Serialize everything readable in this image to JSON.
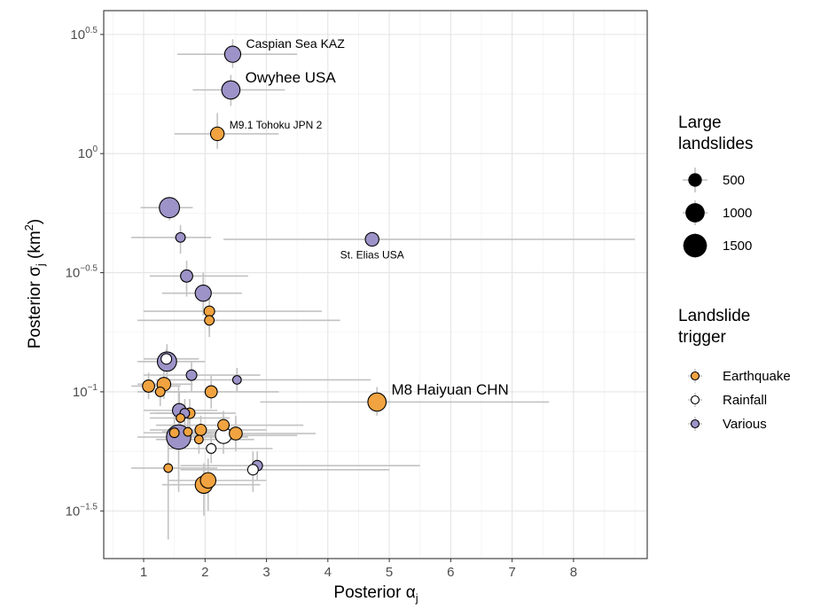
{
  "chart_data": {
    "type": "scatter",
    "xlabel": {
      "main": "Posterior α",
      "sub": "j"
    },
    "ylabel": {
      "main": "Posterior σ",
      "sub": "j",
      "unit_open": " (km",
      "unit_sup": "2",
      "unit_close": ")"
    },
    "x_scale": "linear",
    "y_scale": "log10",
    "xlim": [
      0.35,
      9.2
    ],
    "ylim_log10": [
      -1.7,
      0.6
    ],
    "x_ticks": [
      {
        "value": 1,
        "label": "1"
      },
      {
        "value": 2,
        "label": "2"
      },
      {
        "value": 3,
        "label": "3"
      },
      {
        "value": 4,
        "label": "4"
      },
      {
        "value": 5,
        "label": "5"
      },
      {
        "value": 6,
        "label": "6"
      },
      {
        "value": 7,
        "label": "7"
      },
      {
        "value": 8,
        "label": "8"
      }
    ],
    "y_ticks": [
      {
        "log10": 0.5,
        "base": "10",
        "exp": "0.5"
      },
      {
        "log10": 0,
        "base": "10",
        "exp": "0"
      },
      {
        "log10": -0.5,
        "base": "10",
        "exp": "−0.5"
      },
      {
        "log10": -1,
        "base": "10",
        "exp": "−1"
      },
      {
        "log10": -1.5,
        "base": "10",
        "exp": "−1.5"
      }
    ],
    "grid": true,
    "colors": {
      "Earthquake": "#f0a340",
      "Rainfall": "#ffffff",
      "Various": "#9d93c8",
      "errorbar": "#c2c2c2",
      "grid_major": "#e4e4e4",
      "grid_minor": "#f2f2f2",
      "panel_border": "#333333"
    },
    "legend": {
      "placement": "right",
      "size": {
        "title_lines": [
          "Large",
          "landslides"
        ],
        "entries": [
          {
            "label": "500",
            "value": 500
          },
          {
            "label": "1000",
            "value": 1000
          },
          {
            "label": "1500",
            "value": 1500
          }
        ]
      },
      "trigger": {
        "title_lines": [
          "Landslide",
          "trigger"
        ],
        "entries": [
          {
            "label": "Earthquake",
            "key": "Earthquake"
          },
          {
            "label": "Rainfall",
            "key": "Rainfall"
          },
          {
            "label": "Various",
            "key": "Various"
          }
        ]
      }
    },
    "points": [
      {
        "x": 2.45,
        "log10y": 0.417,
        "xmin": 1.55,
        "xmax": 3.5,
        "log10ymin": 0.48,
        "log10ymax": 0.36,
        "trigger": "Various",
        "size": 700,
        "label": "Caspian Sea KAZ",
        "label_size": 14
      },
      {
        "x": 2.42,
        "log10y": 0.267,
        "xmin": 1.8,
        "xmax": 3.3,
        "log10ymin": 0.33,
        "log10ymax": 0.2,
        "trigger": "Various",
        "size": 900,
        "label": "Owyhee USA",
        "label_size": 17
      },
      {
        "x": 2.2,
        "log10y": 0.083,
        "xmin": 1.5,
        "xmax": 3.2,
        "log10ymin": 0.17,
        "log10ymax": 0.02,
        "trigger": "Earthquake",
        "size": 500,
        "label": "M9.1 Tohoku JPN 2",
        "label_size": 12
      },
      {
        "x": 1.42,
        "log10y": -0.227,
        "xmin": 0.95,
        "xmax": 1.8,
        "log10ymin": -0.19,
        "log10ymax": -0.28,
        "trigger": "Various",
        "size": 1100
      },
      {
        "x": 1.6,
        "log10y": -0.352,
        "xmin": 0.8,
        "xmax": 2.1,
        "log10ymin": -0.3,
        "log10ymax": -0.42,
        "trigger": "Various",
        "size": 250
      },
      {
        "x": 4.72,
        "log10y": -0.36,
        "xmin": 2.3,
        "xmax": 9.0,
        "log10ymin": -0.33,
        "log10ymax": -0.39,
        "trigger": "Various",
        "size": 500,
        "label": "St. Elias USA",
        "label_size": 12
      },
      {
        "x": 1.7,
        "log10y": -0.514,
        "xmin": 1.1,
        "xmax": 2.7,
        "log10ymin": -0.45,
        "log10ymax": -0.6,
        "trigger": "Various",
        "size": 400
      },
      {
        "x": 1.97,
        "log10y": -0.586,
        "xmin": 1.3,
        "xmax": 2.6,
        "log10ymin": -0.5,
        "log10ymax": -0.68,
        "trigger": "Various",
        "size": 700
      },
      {
        "x": 2.07,
        "log10y": -0.662,
        "xmin": 1.0,
        "xmax": 3.9,
        "log10ymin": -0.6,
        "log10ymax": -0.75,
        "trigger": "Earthquake",
        "size": 300
      },
      {
        "x": 2.07,
        "log10y": -0.7,
        "xmin": 0.9,
        "xmax": 4.2,
        "log10ymin": -0.64,
        "log10ymax": -0.77,
        "trigger": "Earthquake",
        "size": 250
      },
      {
        "x": 1.38,
        "log10y": -0.873,
        "xmin": 0.9,
        "xmax": 2.0,
        "log10ymin": -0.8,
        "log10ymax": -0.94,
        "trigger": "Various",
        "size": 1000
      },
      {
        "x": 1.37,
        "log10y": -0.862,
        "xmin": 1.0,
        "xmax": 1.9,
        "log10ymin": -0.82,
        "log10ymax": -0.9,
        "trigger": "Rainfall",
        "size": 300
      },
      {
        "x": 1.78,
        "log10y": -0.93,
        "xmin": 1.0,
        "xmax": 2.9,
        "log10ymin": -0.87,
        "log10ymax": -1.0,
        "trigger": "Various",
        "size": 300
      },
      {
        "x": 2.52,
        "log10y": -0.95,
        "xmin": 1.2,
        "xmax": 4.7,
        "log10ymin": -0.9,
        "log10ymax": -1.0,
        "trigger": "Various",
        "size": 200
      },
      {
        "x": 1.08,
        "log10y": -0.976,
        "xmin": 0.8,
        "xmax": 1.6,
        "log10ymin": -0.92,
        "log10ymax": -1.03,
        "trigger": "Earthquake",
        "size": 400
      },
      {
        "x": 1.33,
        "log10y": -0.968,
        "xmin": 0.9,
        "xmax": 1.8,
        "log10ymin": -0.91,
        "log10ymax": -1.03,
        "trigger": "Earthquake",
        "size": 500
      },
      {
        "x": 1.27,
        "log10y": -1.0,
        "xmin": 0.9,
        "xmax": 1.7,
        "log10ymin": -0.94,
        "log10ymax": -1.06,
        "trigger": "Earthquake",
        "size": 250
      },
      {
        "x": 2.1,
        "log10y": -1.0,
        "xmin": 1.2,
        "xmax": 3.2,
        "log10ymin": -0.93,
        "log10ymax": -1.07,
        "trigger": "Earthquake",
        "size": 400
      },
      {
        "x": 4.8,
        "log10y": -1.043,
        "xmin": 2.9,
        "xmax": 7.6,
        "log10ymin": -0.98,
        "log10ymax": -1.1,
        "trigger": "Earthquake",
        "size": 900,
        "label": "M8 Haiyuan CHN",
        "label_size": 17
      },
      {
        "x": 1.58,
        "log10y": -1.078,
        "xmin": 1.0,
        "xmax": 2.2,
        "log10ymin": -1.0,
        "log10ymax": -1.15,
        "trigger": "Various",
        "size": 500
      },
      {
        "x": 1.67,
        "log10y": -1.09,
        "xmin": 1.1,
        "xmax": 2.3,
        "log10ymin": -1.03,
        "log10ymax": -1.15,
        "trigger": "Various",
        "size": 250
      },
      {
        "x": 1.75,
        "log10y": -1.09,
        "xmin": 1.2,
        "xmax": 2.5,
        "log10ymin": -1.03,
        "log10ymax": -1.15,
        "trigger": "Earthquake",
        "size": 300
      },
      {
        "x": 1.6,
        "log10y": -1.11,
        "xmin": 1.1,
        "xmax": 2.4,
        "log10ymin": -1.05,
        "log10ymax": -1.17,
        "trigger": "Earthquake",
        "size": 200
      },
      {
        "x": 2.3,
        "log10y": -1.14,
        "xmin": 1.2,
        "xmax": 3.6,
        "log10ymin": -1.08,
        "log10ymax": -1.2,
        "trigger": "Earthquake",
        "size": 350
      },
      {
        "x": 1.93,
        "log10y": -1.16,
        "xmin": 1.1,
        "xmax": 3.0,
        "log10ymin": -1.1,
        "log10ymax": -1.22,
        "trigger": "Earthquake",
        "size": 350
      },
      {
        "x": 1.72,
        "log10y": -1.168,
        "xmin": 1.3,
        "xmax": 2.3,
        "log10ymin": -1.11,
        "log10ymax": -1.23,
        "trigger": "Earthquake",
        "size": 200
      },
      {
        "x": 1.5,
        "log10y": -1.172,
        "xmin": 1.0,
        "xmax": 2.1,
        "log10ymin": -1.1,
        "log10ymax": -1.24,
        "trigger": "Earthquake",
        "size": 250
      },
      {
        "x": 2.5,
        "log10y": -1.175,
        "xmin": 1.4,
        "xmax": 3.8,
        "log10ymin": -1.1,
        "log10ymax": -1.25,
        "trigger": "Earthquake",
        "size": 450
      },
      {
        "x": 2.3,
        "log10y": -1.183,
        "xmin": 1.4,
        "xmax": 3.5,
        "log10ymin": -1.11,
        "log10ymax": -1.26,
        "trigger": "Rainfall",
        "size": 700
      },
      {
        "x": 1.9,
        "log10y": -1.2,
        "xmin": 1.2,
        "xmax": 2.8,
        "log10ymin": -1.14,
        "log10ymax": -1.26,
        "trigger": "Earthquake",
        "size": 200
      },
      {
        "x": 1.57,
        "log10y": -1.19,
        "xmin": 0.9,
        "xmax": 2.7,
        "log10ymin": -0.98,
        "log10ymax": -1.42,
        "trigger": "Various",
        "size": 1600
      },
      {
        "x": 2.1,
        "log10y": -1.238,
        "xmin": 1.4,
        "xmax": 3.1,
        "log10ymin": -1.18,
        "log10ymax": -1.3,
        "trigger": "Rainfall",
        "size": 250
      },
      {
        "x": 2.85,
        "log10y": -1.31,
        "xmin": 1.6,
        "xmax": 5.5,
        "log10ymin": -1.25,
        "log10ymax": -1.37,
        "trigger": "Various",
        "size": 300
      },
      {
        "x": 2.78,
        "log10y": -1.327,
        "xmin": 1.6,
        "xmax": 5.0,
        "log10ymin": -1.25,
        "log10ymax": -1.42,
        "trigger": "Rainfall",
        "size": 300
      },
      {
        "x": 1.4,
        "log10y": -1.32,
        "xmin": 0.8,
        "xmax": 2.2,
        "log10ymin": -1.2,
        "log10ymax": -1.62,
        "trigger": "Earthquake",
        "size": 200
      },
      {
        "x": 2.05,
        "log10y": -1.372,
        "xmin": 1.4,
        "xmax": 3.0,
        "log10ymin": -1.28,
        "log10ymax": -1.5,
        "trigger": "Earthquake",
        "size": 650
      },
      {
        "x": 1.98,
        "log10y": -1.39,
        "xmin": 1.3,
        "xmax": 2.9,
        "log10ymin": -1.3,
        "log10ymax": -1.52,
        "trigger": "Earthquake",
        "size": 800
      }
    ]
  }
}
